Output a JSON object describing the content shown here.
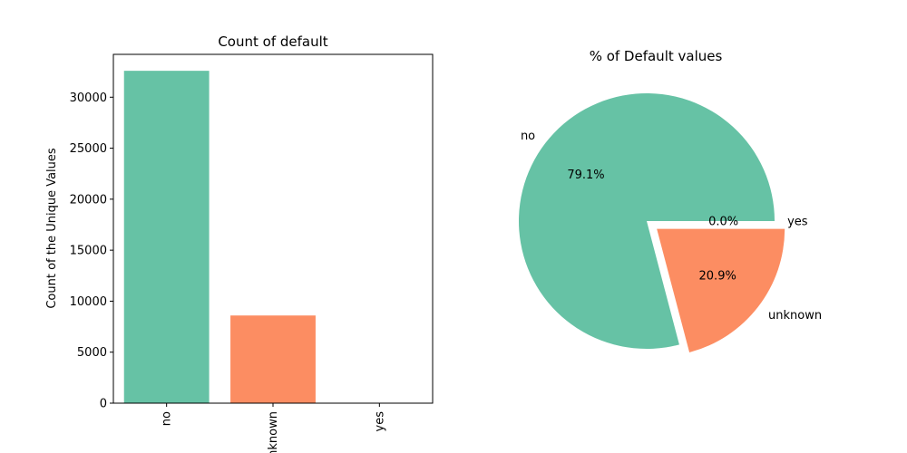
{
  "chart_data": [
    {
      "type": "bar",
      "title": "Count of default",
      "xlabel": "",
      "ylabel": "Count of the Unique Values",
      "categories": [
        "no",
        "unknown",
        "yes"
      ],
      "values": [
        32588,
        8597,
        3
      ],
      "ylim": [
        0,
        34200
      ],
      "yticks": [
        0,
        5000,
        10000,
        15000,
        20000,
        25000,
        30000
      ],
      "colors": [
        "#66c2a5",
        "#fc8d62",
        "#8da0cb"
      ],
      "grid": false
    },
    {
      "type": "pie",
      "title": "% of Default values",
      "labels": [
        "no",
        "unknown",
        "yes"
      ],
      "values": [
        79.1,
        20.9,
        0.0
      ],
      "autopct": [
        "79.1%",
        "20.9%",
        "0.0%"
      ],
      "colors": [
        "#66c2a5",
        "#fc8d62",
        "#8da0cb"
      ],
      "explode": [
        "unknown"
      ]
    }
  ]
}
